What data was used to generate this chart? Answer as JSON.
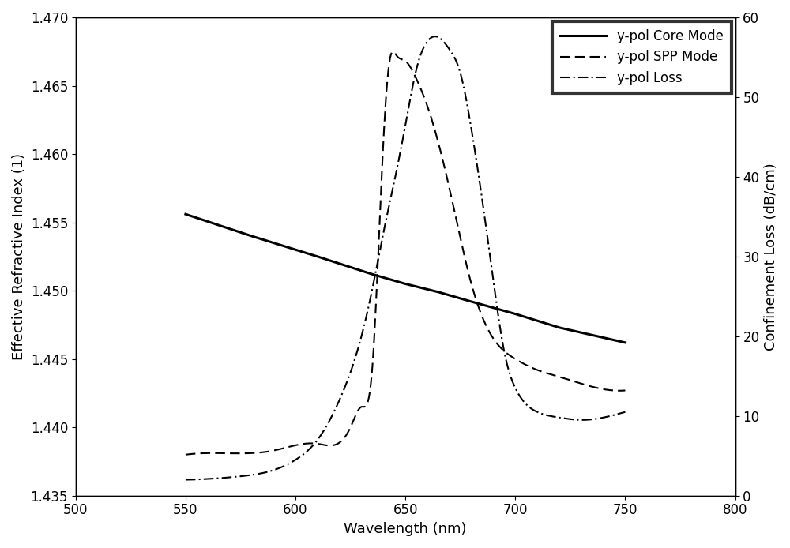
{
  "title": "",
  "xlabel": "Wavelength (nm)",
  "ylabel_left": "Effective Refractive Index (1)",
  "ylabel_right": "Confinement Loss (dB/cm)",
  "xlim": [
    500,
    800
  ],
  "ylim_left": [
    1.435,
    1.47
  ],
  "ylim_right": [
    0,
    60
  ],
  "xticks": [
    500,
    550,
    600,
    650,
    700,
    750,
    800
  ],
  "yticks_left": [
    1.435,
    1.44,
    1.445,
    1.45,
    1.455,
    1.46,
    1.465,
    1.47
  ],
  "yticks_right": [
    0,
    10,
    20,
    30,
    40,
    50,
    60
  ],
  "core_mode_x": [
    550,
    580,
    610,
    635,
    650,
    665,
    680,
    700,
    720,
    750
  ],
  "core_mode_y": [
    1.4556,
    1.454,
    1.4525,
    1.4512,
    1.4505,
    1.4499,
    1.4492,
    1.4483,
    1.4473,
    1.4462
  ],
  "spp_mode_x": [
    550,
    570,
    590,
    610,
    625,
    630,
    635,
    640,
    643,
    646,
    650,
    655,
    660,
    670,
    680,
    690,
    700,
    710,
    720,
    730,
    750
  ],
  "spp_mode_y": [
    1.438,
    1.4381,
    1.4383,
    1.4388,
    1.44,
    1.4415,
    1.4445,
    1.461,
    1.467,
    1.4672,
    1.4668,
    1.4655,
    1.4635,
    1.4575,
    1.4505,
    1.4465,
    1.445,
    1.4442,
    1.4437,
    1.4432,
    1.4427
  ],
  "loss_x": [
    550,
    560,
    570,
    580,
    590,
    600,
    610,
    620,
    630,
    635,
    640,
    645,
    650,
    655,
    660,
    665,
    670,
    675,
    680,
    685,
    690,
    695,
    700,
    710,
    720,
    730,
    740,
    750
  ],
  "loss_y_dB": [
    2.0,
    2.1,
    2.3,
    2.6,
    3.2,
    4.5,
    7.0,
    12.0,
    20.0,
    26.0,
    33.0,
    39.5,
    46.5,
    53.5,
    57.0,
    57.5,
    56.0,
    53.0,
    46.0,
    37.0,
    27.0,
    18.0,
    13.5,
    10.5,
    9.8,
    9.5,
    9.8,
    10.5
  ],
  "line_color": "#000000",
  "core_linewidth": 2.2,
  "other_linewidth": 1.5,
  "legend_labels": [
    "y-pol Core Mode",
    "y-pol SPP Mode",
    "y-pol Loss"
  ],
  "legend_loc": "upper right",
  "font_size": 13
}
